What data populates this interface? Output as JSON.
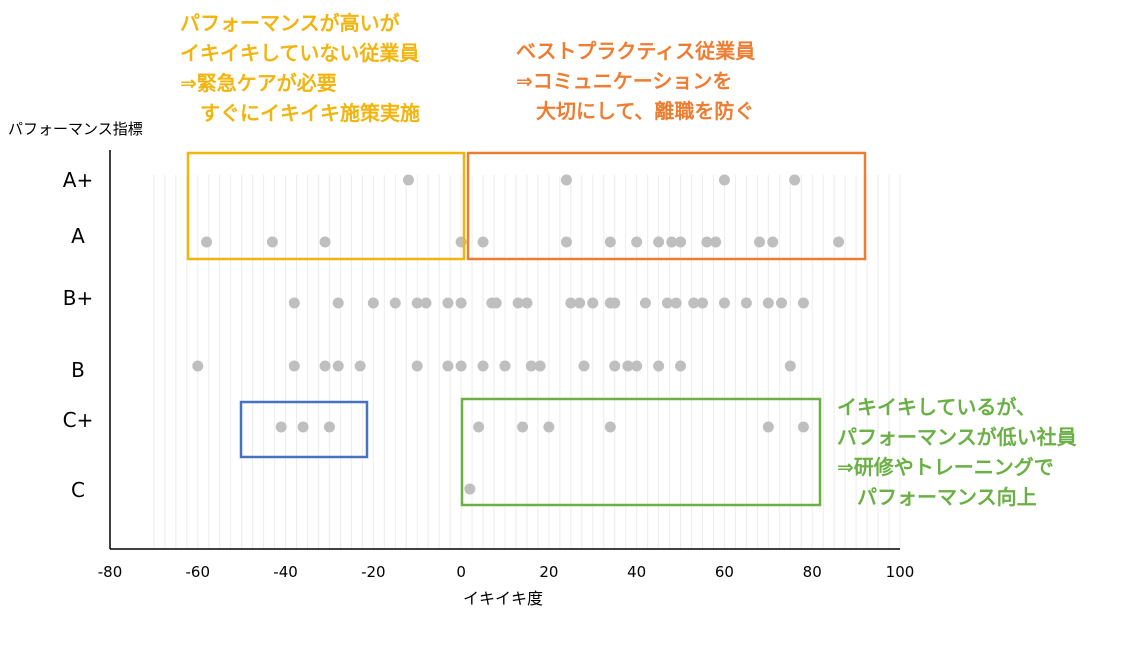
{
  "chart_data": {
    "type": "scatter",
    "ylabel": "パフォーマンス指標",
    "xlabel": "イキイキ度",
    "x_ticks": [
      -80,
      -60,
      -40,
      -20,
      0,
      20,
      40,
      60,
      80,
      100
    ],
    "xlim": [
      -80,
      100
    ],
    "y_categories": [
      "A+",
      "A",
      "B+",
      "B",
      "C+",
      "C"
    ],
    "grid": "vertical-minor",
    "legend": "none",
    "point_color": "#bfbfbf",
    "points": {
      "A+": [
        -12,
        24,
        60,
        76
      ],
      "A": [
        -58,
        -43,
        -31,
        0,
        5,
        24,
        34,
        40,
        45,
        48,
        50,
        56,
        58,
        68,
        71,
        86
      ],
      "B+": [
        -38,
        -28,
        -20,
        -15,
        -10,
        -8,
        -3,
        0,
        7,
        8,
        13,
        15,
        25,
        27,
        30,
        34,
        35,
        42,
        47,
        49,
        53,
        55,
        60,
        65,
        70,
        73,
        78
      ],
      "B": [
        -60,
        -38,
        -31,
        -28,
        -23,
        -10,
        -3,
        0,
        5,
        10,
        16,
        18,
        28,
        35,
        38,
        40,
        45,
        50,
        75
      ],
      "C+": [
        -41,
        -36,
        -30,
        4,
        14,
        20,
        34,
        70,
        78
      ],
      "C": [
        2
      ]
    }
  },
  "annotations": [
    {
      "id": "top-left",
      "color": "#f2b40e",
      "lines": [
        "パフォーマンスが高いが",
        "イキイキしていない従業員",
        "⇒緊急ケアが必要",
        "　すぐにイキイキ施策実施"
      ]
    },
    {
      "id": "top-right",
      "color": "#ee7d31",
      "lines": [
        "ベストプラクティス従業員",
        "⇒コミュニケーションを",
        "　大切にして、離職を防ぐ"
      ]
    },
    {
      "id": "bottom-right",
      "color": "#6ab045",
      "lines": [
        "イキイキしているが、",
        "パフォーマンスが低い社員",
        "⇒研修やトレーニングで",
        "　パフォーマンス向上"
      ]
    }
  ],
  "boxes": [
    {
      "id": "top-left-box",
      "color": "#f2b40e"
    },
    {
      "id": "top-right-box",
      "color": "#ee7d31"
    },
    {
      "id": "bottom-left-box",
      "color": "#4672c4"
    },
    {
      "id": "bottom-right-box",
      "color": "#6ab045"
    }
  ]
}
